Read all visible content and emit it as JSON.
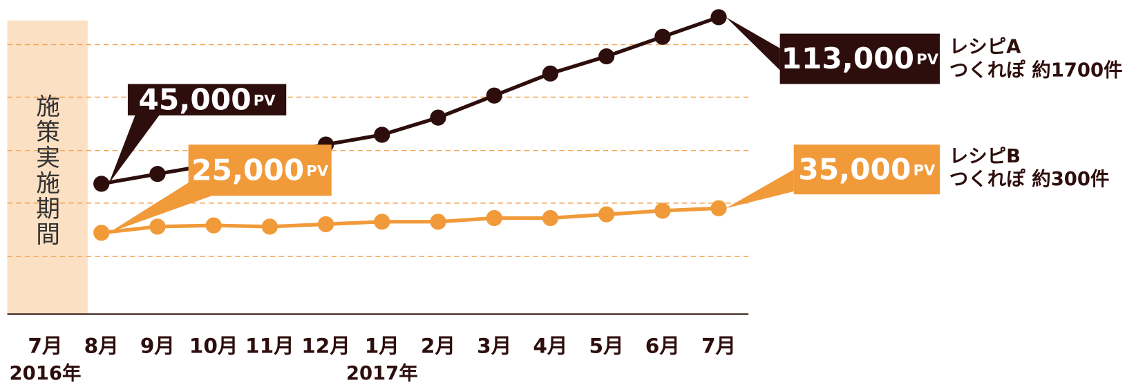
{
  "chart_data": {
    "type": "line",
    "categories": [
      "7月",
      "8月",
      "9月",
      "10月",
      "11月",
      "12月",
      "1月",
      "2月",
      "3月",
      "4月",
      "5月",
      "6月",
      "7月"
    ],
    "year_labels": [
      "2016年",
      null,
      null,
      null,
      null,
      null,
      "2017年",
      null,
      null,
      null,
      null,
      null,
      null
    ],
    "annotation": "施策実施期間",
    "unit": "PV",
    "ylim": [
      -10000,
      120000
    ],
    "grid": true,
    "series": [
      {
        "name": "レシピA",
        "detail": "つくれぽ 約1700件",
        "color": "#2d0e0c",
        "values": [
          null,
          45000,
          49000,
          53000,
          57000,
          61000,
          65000,
          72000,
          81000,
          90000,
          97000,
          105000,
          113000
        ],
        "value_labels": [
          null,
          "45,000",
          null,
          null,
          null,
          null,
          null,
          null,
          null,
          null,
          null,
          null,
          "113,000"
        ]
      },
      {
        "name": "レシピB",
        "detail": "つくれぽ 約300件",
        "color": "#f19a3a",
        "values": [
          null,
          25000,
          27500,
          28000,
          27500,
          28500,
          29500,
          29500,
          31000,
          31000,
          32500,
          34000,
          35000
        ],
        "value_labels": [
          null,
          "25,000",
          null,
          null,
          null,
          null,
          null,
          null,
          null,
          null,
          null,
          null,
          "35,000"
        ]
      }
    ]
  }
}
